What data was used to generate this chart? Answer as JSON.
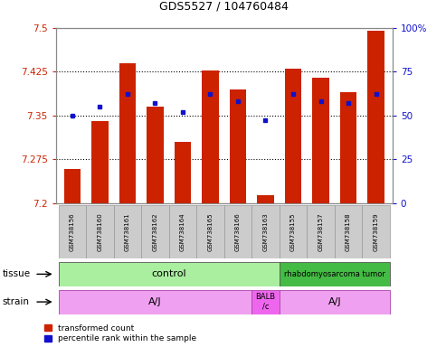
{
  "title": "GDS5527 / 104760484",
  "samples": [
    "GSM738156",
    "GSM738160",
    "GSM738161",
    "GSM738162",
    "GSM738164",
    "GSM738165",
    "GSM738166",
    "GSM738163",
    "GSM738155",
    "GSM738157",
    "GSM738158",
    "GSM738159"
  ],
  "red_values": [
    7.258,
    7.34,
    7.44,
    7.365,
    7.305,
    7.427,
    7.395,
    7.213,
    7.43,
    7.415,
    7.39,
    7.495
  ],
  "blue_values": [
    50,
    55,
    62,
    57,
    52,
    62,
    58,
    47,
    62,
    58,
    57,
    62
  ],
  "ymin": 7.2,
  "ymax": 7.5,
  "y2min": 0,
  "y2max": 100,
  "yticks": [
    7.2,
    7.275,
    7.35,
    7.425,
    7.5
  ],
  "ytick_labels": [
    "7.2",
    "7.275",
    "7.35",
    "7.425",
    "7.5"
  ],
  "y2ticks": [
    0,
    25,
    50,
    75,
    100
  ],
  "y2tick_labels": [
    "0",
    "25",
    "50",
    "75",
    "100%"
  ],
  "bar_color": "#cc2200",
  "dot_color": "#1111cc",
  "bar_width": 0.6,
  "control_color": "#aaeea0",
  "rhabdo_color": "#44bb44",
  "strain_aj_color": "#f0a0f0",
  "strain_balb_color": "#ee66ee",
  "sample_box_color": "#cccccc",
  "sample_box_edge": "#999999",
  "grid_color": "#000000",
  "spine_color": "#888888"
}
